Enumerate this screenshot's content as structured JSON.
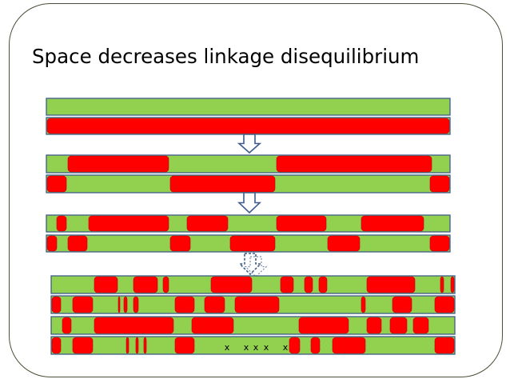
{
  "slide": {
    "title": "Space decreases linkage disequilibrium"
  },
  "colors": {
    "green": "#92d050",
    "red": "#ff0000",
    "outline": "#3f5c8a",
    "arrow_fill": "#ffffff",
    "arrow_stroke": "#3f5c8a"
  },
  "annotations": {
    "crossover_marks": [
      "x",
      "x",
      "x",
      "x",
      "x"
    ]
  }
}
